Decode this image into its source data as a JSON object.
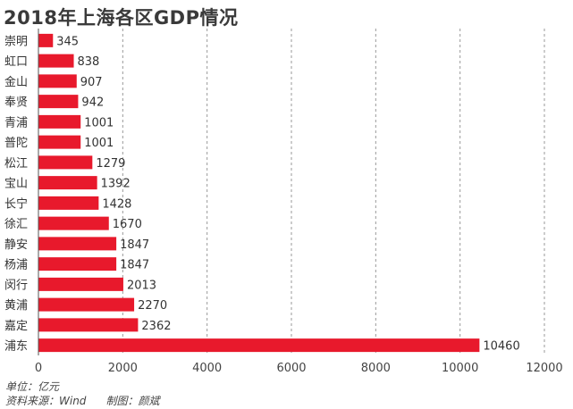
{
  "chart_data": {
    "type": "bar",
    "orientation": "horizontal",
    "title": "2018年上海各区GDP情况",
    "categories": [
      "崇明",
      "虹口",
      "金山",
      "奉贤",
      "青浦",
      "普陀",
      "松江",
      "宝山",
      "长宁",
      "徐汇",
      "静安",
      "杨浦",
      "闵行",
      "黄浦",
      "嘉定",
      "浦东"
    ],
    "values": [
      345,
      838,
      907,
      942,
      1001,
      1001,
      1279,
      1392,
      1428,
      1670,
      1847,
      1847,
      2013,
      2270,
      2362,
      10460
    ],
    "xlim": [
      0,
      12000
    ],
    "xticks": [
      0,
      2000,
      4000,
      6000,
      8000,
      10000,
      12000
    ],
    "grid": "vertical-dashed",
    "bar_color": "#e8192c"
  },
  "footer": {
    "unit": "单位：亿元",
    "source": "资料来源：Wind",
    "author": "制图：颜斌"
  }
}
